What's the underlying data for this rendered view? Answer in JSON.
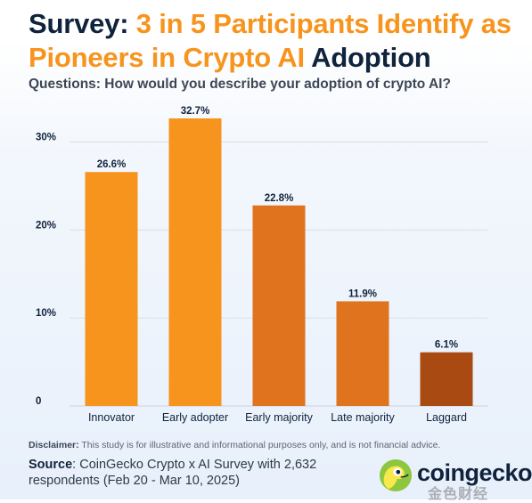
{
  "header": {
    "title_part1": "Survey: ",
    "title_part2": "3 in 5 Participants Identify as Pioneers in Crypto AI",
    "title_part3": " Adoption",
    "subtitle": "Questions: How would you describe your adoption of crypto AI?"
  },
  "chart_data": {
    "type": "bar",
    "title": "",
    "xlabel": "",
    "ylabel": "",
    "categories": [
      "Innovator",
      "Early adopter",
      "Early majority",
      "Late majority",
      "Laggard"
    ],
    "values": [
      26.6,
      32.7,
      22.8,
      11.9,
      6.1
    ],
    "data_labels": [
      "26.6%",
      "32.7%",
      "22.8%",
      "11.9%",
      "6.1%"
    ],
    "ylim": [
      0,
      33
    ],
    "yticks": [
      0,
      10,
      20,
      30
    ],
    "ytick_labels": [
      "0",
      "10%",
      "20%",
      "30%"
    ],
    "grid": true,
    "colors": [
      "#f7941d",
      "#f7941d",
      "#e0731e",
      "#e0731e",
      "#a94a12"
    ]
  },
  "footer": {
    "disclaimer_label": "Disclaimer:",
    "disclaimer_text": " This study is for illustrative and informational purposes only, and is not financial advice.",
    "source_label": "Source",
    "source_text": ": CoinGecko Crypto x AI Survey with 2,632 respondents (Feb 20 - Mar 10, 2025)",
    "brand": "coingecko",
    "watermark": "金色财经"
  }
}
